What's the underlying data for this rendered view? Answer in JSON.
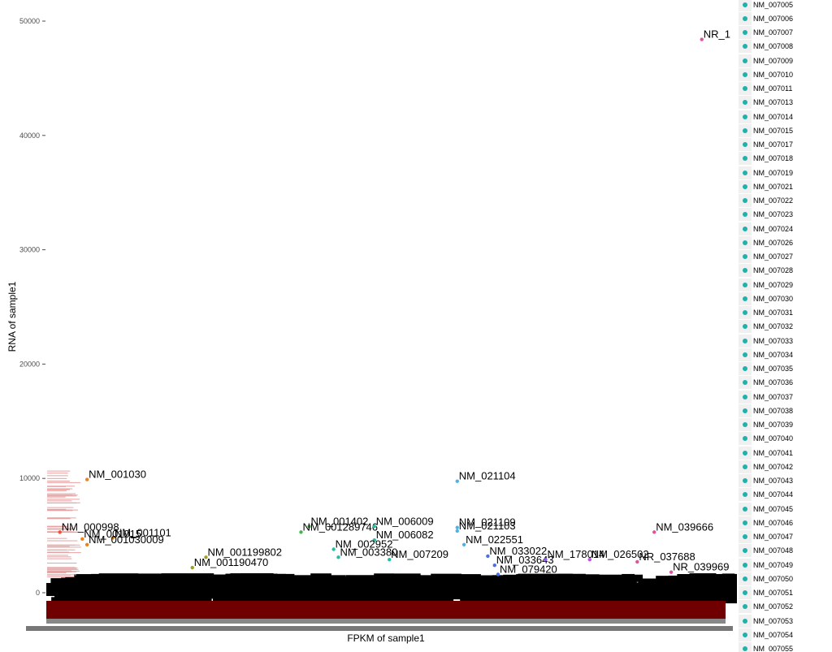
{
  "chart_data": {
    "type": "scatter",
    "xlabel": "FPKM of sample1",
    "ylabel": "RNA of sample1",
    "ylim": [
      -1500,
      52000
    ],
    "y_ticks": [
      0,
      10000,
      20000,
      30000,
      40000,
      50000
    ],
    "y_tick_labels": [
      "0",
      "10000",
      "20000",
      "30000",
      "40000",
      "50000"
    ],
    "x_tick_labels": [],
    "grid": false,
    "legend_position": "right",
    "points": [
      {
        "label": "NR_1",
        "x": 0.965,
        "y": 48400,
        "color": "#e052a0"
      },
      {
        "label": "NM_001030",
        "x": 0.06,
        "y": 9900,
        "color": "#e8861a"
      },
      {
        "label": "NM_021104",
        "x": 0.605,
        "y": 9750,
        "color": "#4db3e6"
      },
      {
        "label": "NM_021109",
        "x": 0.605,
        "y": 5700,
        "color": "#4db3e6"
      },
      {
        "label": "NM_021103",
        "x": 0.605,
        "y": 5400,
        "color": "#4db3e6"
      },
      {
        "label": "NM_039666",
        "x": 0.895,
        "y": 5300,
        "color": "#e052a0"
      },
      {
        "label": "NM_001402",
        "x": 0.387,
        "y": 5800,
        "color": "#3cbb4a"
      },
      {
        "label": "NM_001289746",
        "x": 0.375,
        "y": 5300,
        "color": "#3cbb4a"
      },
      {
        "label": "NM_006009",
        "x": 0.483,
        "y": 5800,
        "color": "#20c0a0"
      },
      {
        "label": "NM_006082",
        "x": 0.483,
        "y": 4600,
        "color": "#20c0a0"
      },
      {
        "label": "NM_022551",
        "x": 0.615,
        "y": 4200,
        "color": "#4db3e6"
      },
      {
        "label": "NM_000998",
        "x": 0.02,
        "y": 5300,
        "color": "#e8543c"
      },
      {
        "label": "NM_001101",
        "x": 0.098,
        "y": 4800,
        "color": "#e8861a"
      },
      {
        "label": "NM_001015",
        "x": 0.053,
        "y": 4700,
        "color": "#e8861a"
      },
      {
        "label": "NM_001030009",
        "x": 0.06,
        "y": 4200,
        "color": "#e8861a"
      },
      {
        "label": "NM_001199802",
        "x": 0.235,
        "y": 3100,
        "color": "#a0a020"
      },
      {
        "label": "NM_001190470",
        "x": 0.215,
        "y": 2200,
        "color": "#a0a020"
      },
      {
        "label": "NM_002952",
        "x": 0.423,
        "y": 3800,
        "color": "#20c0a0"
      },
      {
        "label": "NM_003380",
        "x": 0.43,
        "y": 3100,
        "color": "#20c0a0"
      },
      {
        "label": "NM_007209",
        "x": 0.505,
        "y": 2900,
        "color": "#20c0a0"
      },
      {
        "label": "NM_033022",
        "x": 0.65,
        "y": 3200,
        "color": "#4b6fe8"
      },
      {
        "label": "NM_033643",
        "x": 0.66,
        "y": 2400,
        "color": "#4b6fe8"
      },
      {
        "label": "NM_178014",
        "x": 0.735,
        "y": 2900,
        "color": "#8e5ae8"
      },
      {
        "label": "NM_026502",
        "x": 0.8,
        "y": 2900,
        "color": "#c050e0"
      },
      {
        "label": "NR_037688",
        "x": 0.87,
        "y": 2700,
        "color": "#e052a0"
      },
      {
        "label": "NR_039969",
        "x": 0.92,
        "y": 1800,
        "color": "#e052a0"
      },
      {
        "label": "NM_079420",
        "x": 0.665,
        "y": 1600,
        "color": "#4b6fe8"
      }
    ]
  }
}
